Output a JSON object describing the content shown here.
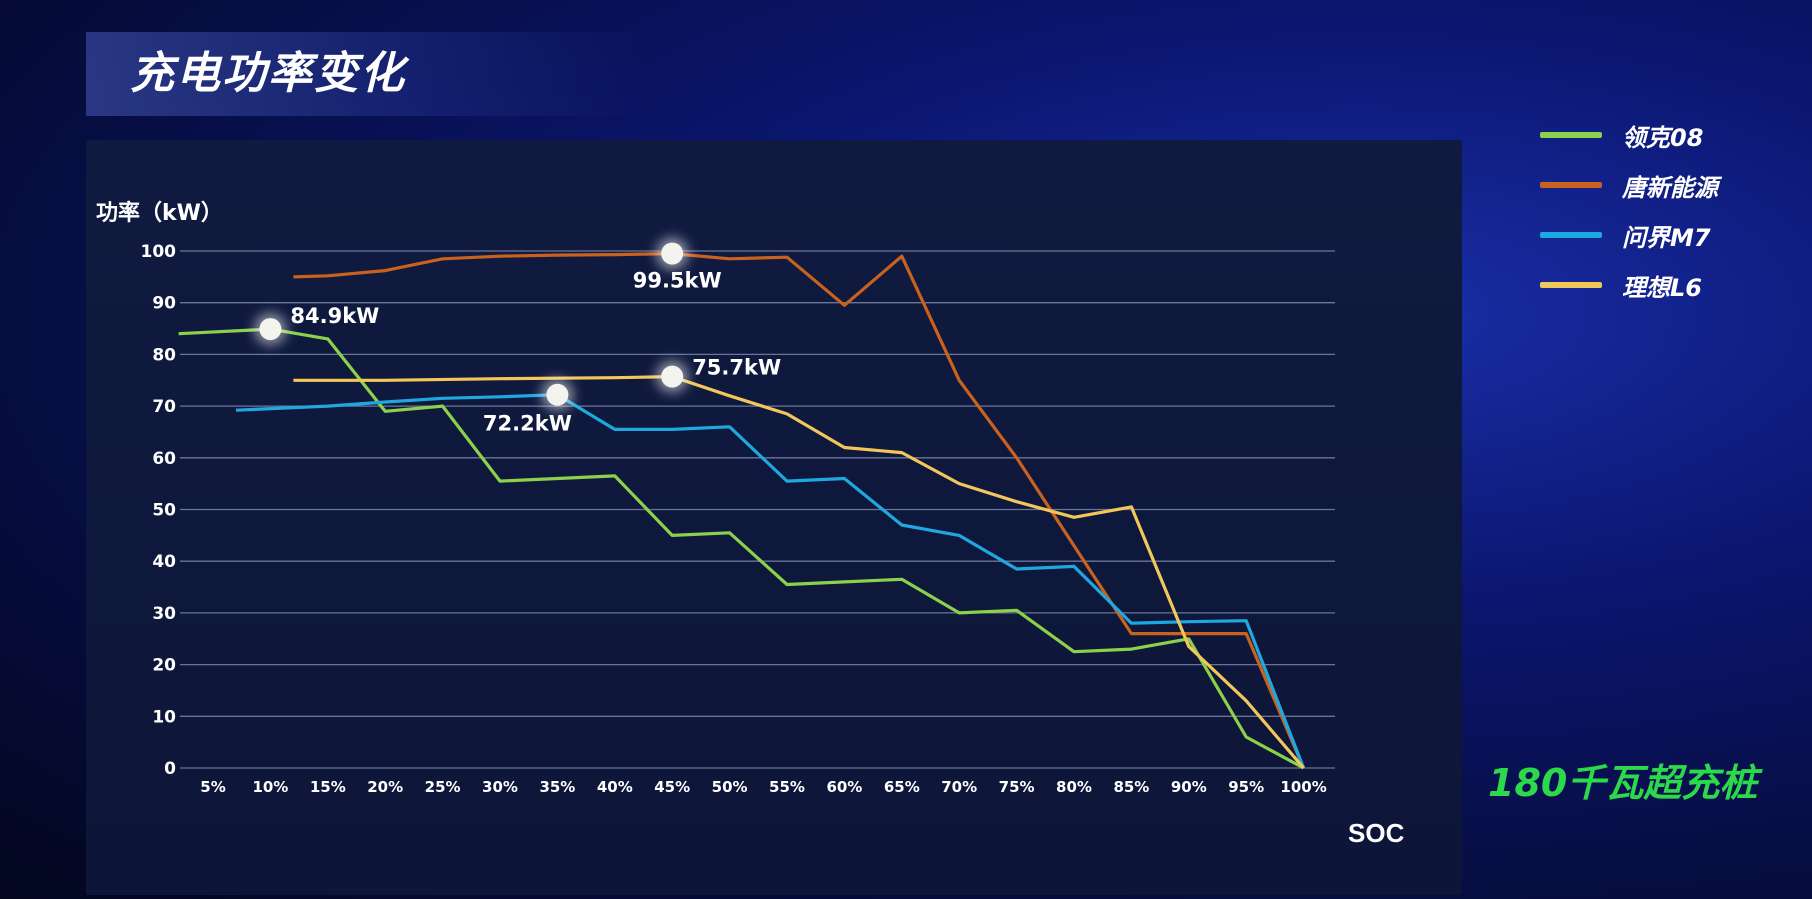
{
  "slide": {
    "title": "充电功率变化",
    "footer_tag": "180千瓦超充桩"
  },
  "chart_data": {
    "type": "line",
    "ylabel": "功率（kW）",
    "xlabel": "SOC",
    "ylim": [
      0,
      100
    ],
    "yticks": [
      0,
      10,
      20,
      30,
      40,
      50,
      60,
      70,
      80,
      90,
      100
    ],
    "categories": [
      "5%",
      "10%",
      "15%",
      "20%",
      "25%",
      "30%",
      "35%",
      "40%",
      "45%",
      "50%",
      "55%",
      "60%",
      "65%",
      "70%",
      "75%",
      "80%",
      "85%",
      "90%",
      "95%",
      "100%"
    ],
    "x": [
      5,
      10,
      15,
      20,
      25,
      30,
      35,
      40,
      45,
      50,
      55,
      60,
      65,
      70,
      75,
      80,
      85,
      90,
      95,
      100
    ],
    "grid": true,
    "legend_position": "right",
    "series": [
      {
        "name": "领克08",
        "color": "#8bd14a",
        "points": [
          [
            2,
            84
          ],
          [
            10,
            84.9
          ],
          [
            15,
            83
          ],
          [
            20,
            69
          ],
          [
            25,
            70
          ],
          [
            30,
            55.5
          ],
          [
            35,
            56
          ],
          [
            40,
            56.5
          ],
          [
            45,
            45
          ],
          [
            50,
            45.5
          ],
          [
            55,
            35.5
          ],
          [
            60,
            36
          ],
          [
            65,
            36.5
          ],
          [
            70,
            30
          ],
          [
            75,
            30.5
          ],
          [
            80,
            22.5
          ],
          [
            85,
            23
          ],
          [
            90,
            25
          ],
          [
            95,
            6
          ],
          [
            100,
            0
          ]
        ]
      },
      {
        "name": "唐新能源",
        "color": "#c8621e",
        "points": [
          [
            12,
            95
          ],
          [
            15,
            95.2
          ],
          [
            20,
            96.2
          ],
          [
            25,
            98.5
          ],
          [
            30,
            99
          ],
          [
            35,
            99.2
          ],
          [
            40,
            99.3
          ],
          [
            45,
            99.5
          ],
          [
            50,
            98.5
          ],
          [
            55,
            98.8
          ],
          [
            60,
            89.5
          ],
          [
            65,
            99
          ],
          [
            70,
            75
          ],
          [
            75,
            60
          ],
          [
            80,
            43
          ],
          [
            85,
            26
          ],
          [
            90,
            26
          ],
          [
            95,
            26
          ],
          [
            100,
            0
          ]
        ]
      },
      {
        "name": "问界M7",
        "color": "#1fa8e0",
        "points": [
          [
            7,
            69.2
          ],
          [
            15,
            70
          ],
          [
            20,
            70.8
          ],
          [
            25,
            71.5
          ],
          [
            30,
            71.8
          ],
          [
            35,
            72.2
          ],
          [
            40,
            65.5
          ],
          [
            45,
            65.5
          ],
          [
            50,
            66
          ],
          [
            55,
            55.5
          ],
          [
            60,
            56
          ],
          [
            65,
            47
          ],
          [
            70,
            45
          ],
          [
            75,
            38.5
          ],
          [
            80,
            39
          ],
          [
            85,
            28
          ],
          [
            90,
            28.3
          ],
          [
            95,
            28.5
          ],
          [
            100,
            0
          ]
        ]
      },
      {
        "name": "理想L6",
        "color": "#f2c75a",
        "points": [
          [
            12,
            75
          ],
          [
            20,
            75
          ],
          [
            30,
            75.3
          ],
          [
            40,
            75.5
          ],
          [
            45,
            75.7
          ],
          [
            50,
            72
          ],
          [
            55,
            68.5
          ],
          [
            60,
            62
          ],
          [
            65,
            61
          ],
          [
            70,
            55
          ],
          [
            75,
            51.5
          ],
          [
            80,
            48.5
          ],
          [
            85,
            50.5
          ],
          [
            90,
            23.5
          ],
          [
            95,
            13
          ],
          [
            100,
            0
          ]
        ]
      }
    ],
    "annotations": [
      {
        "text": "84.9kW",
        "series": "领克08",
        "x": 10,
        "y": 84.9
      },
      {
        "text": "99.5kW",
        "series": "唐新能源",
        "x": 45,
        "y": 99.5
      },
      {
        "text": "75.7kW",
        "series": "理想L6",
        "x": 45,
        "y": 75.7
      },
      {
        "text": "72.2kW",
        "series": "问界M7",
        "x": 35,
        "y": 72.2
      }
    ]
  }
}
